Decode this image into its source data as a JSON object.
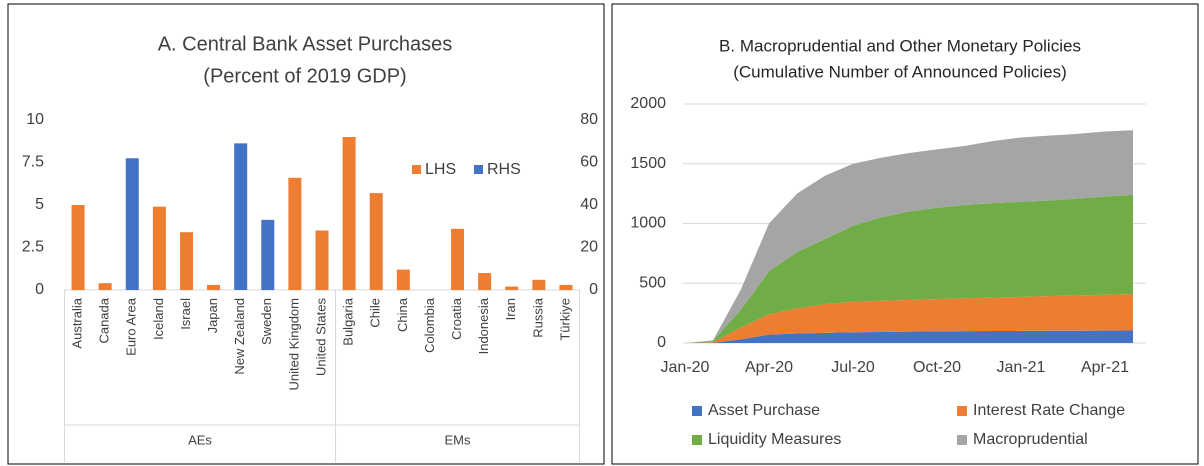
{
  "chart_data": [
    {
      "type": "bar",
      "title": "A. Central Bank Asset Purchases",
      "subtitle": "(Percent of 2019 GDP)",
      "groups": [
        {
          "label": "AEs",
          "categories": [
            "Australia",
            "Canada",
            "Euro Area",
            "Iceland",
            "Israel",
            "Japan",
            "New Zealand",
            "Sweden",
            "United Kingdom",
            "United States"
          ]
        },
        {
          "label": "EMs",
          "categories": [
            "Bulgaria",
            "Chile",
            "China",
            "Colombia",
            "Croatia",
            "Indonesia",
            "Iran",
            "Russia",
            "Türkiye"
          ]
        }
      ],
      "series": [
        {
          "name": "LHS",
          "color": "#ed7d31",
          "values": [
            5.0,
            0.4,
            null,
            4.9,
            3.4,
            0.3,
            null,
            null,
            6.6,
            3.5,
            9.0,
            5.7,
            1.2,
            0,
            3.6,
            1.0,
            0.2,
            0.6,
            0.3
          ]
        },
        {
          "name": "RHS",
          "color": "#4472c4",
          "axis": "y2",
          "values": [
            null,
            null,
            62,
            null,
            null,
            null,
            69,
            33,
            null,
            null,
            null,
            null,
            null,
            null,
            null,
            null,
            null,
            null,
            null
          ]
        }
      ],
      "ylim": [
        0,
        10
      ],
      "yticks": [
        0,
        2.5,
        5,
        7.5,
        10
      ],
      "y2lim": [
        0,
        80
      ],
      "y2ticks": [
        0,
        20,
        40,
        60,
        80
      ],
      "legend": "top-right",
      "grid": false
    },
    {
      "type": "stacked-area",
      "title": "B. Macroprudential and Other Monetary Policies",
      "subtitle": "(Cumulative Number of Announced Policies)",
      "x": [
        "Jan-20",
        null,
        null,
        "Apr-20",
        null,
        null,
        "Jul-20",
        null,
        null,
        "Oct-20",
        null,
        null,
        "Jan-21",
        null,
        null,
        "Apr-21",
        null
      ],
      "series": [
        {
          "name": "Asset Purchase",
          "color": "#4472c4",
          "values": [
            0,
            2,
            30,
            70,
            80,
            85,
            90,
            92,
            95,
            97,
            99,
            100,
            101,
            102,
            103,
            104,
            105
          ]
        },
        {
          "name": "Interest Rate Change",
          "color": "#ed7d31",
          "values": [
            0,
            5,
            100,
            170,
            210,
            240,
            255,
            260,
            265,
            270,
            275,
            280,
            285,
            290,
            295,
            300,
            305
          ]
        },
        {
          "name": "Liquidity Measures",
          "color": "#70ad47",
          "values": [
            0,
            10,
            150,
            360,
            470,
            545,
            635,
            700,
            740,
            765,
            780,
            790,
            795,
            800,
            810,
            822,
            830
          ]
        },
        {
          "name": "Macroprudential",
          "color": "#a5a5a5",
          "values": [
            0,
            5,
            170,
            400,
            490,
            530,
            520,
            498,
            490,
            488,
            496,
            520,
            539,
            543,
            542,
            544,
            540
          ]
        }
      ],
      "ylim": [
        0,
        2000
      ],
      "yticks": [
        0,
        500,
        1000,
        1500,
        2000
      ],
      "legend": "bottom",
      "grid": true
    }
  ]
}
